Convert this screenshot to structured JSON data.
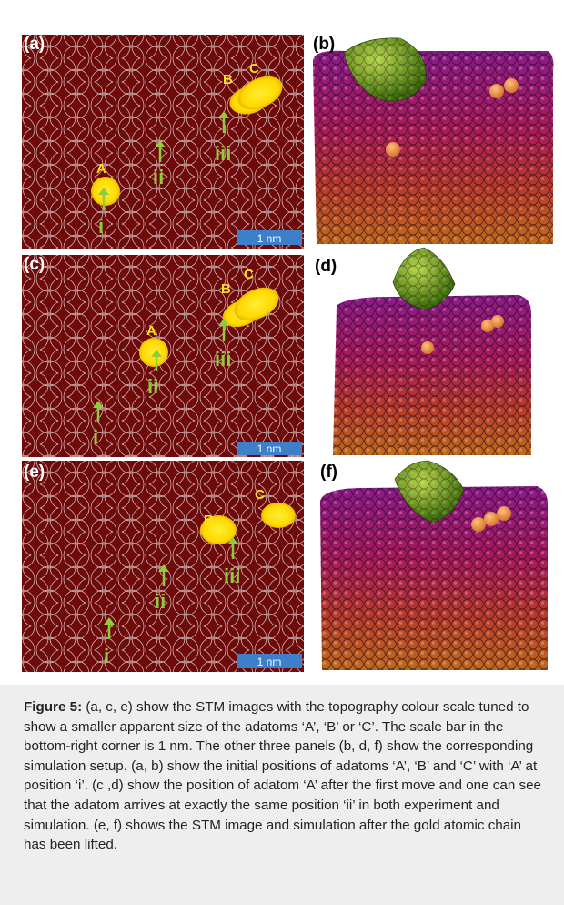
{
  "panels": {
    "a": {
      "label": "(a)",
      "adatoms": [
        "A",
        "B",
        "C"
      ],
      "positions": [
        "i",
        "ii",
        "iii"
      ],
      "scalebar": "1 nm"
    },
    "b": {
      "label": "(b)"
    },
    "c": {
      "label": "(c)",
      "adatoms": [
        "A",
        "B",
        "C"
      ],
      "positions": [
        "i",
        "ii",
        "iii"
      ],
      "scalebar": "1 nm"
    },
    "d": {
      "label": "(d)"
    },
    "e": {
      "label": "(e)",
      "adatoms": [
        "B",
        "C"
      ],
      "positions": [
        "i",
        "ii",
        "iii"
      ],
      "scalebar": "1 nm"
    },
    "f": {
      "label": "(f)"
    }
  },
  "caption": {
    "title": "Figure 5:",
    "text": " (a, c, e) show the STM images with the topography colour scale tuned to show a smaller apparent size of the adatoms ‘A’, ‘B’ or ‘C’. The scale bar in the bottom-right corner is 1 nm. The other three panels (b, d, f) show the corresponding simulation setup. (a, b) show the initial positions of adatoms ‘A’, ‘B’ and ‘C’ with ‘A’ at position ‘i’. (c ,d) show the position of adatom ‘A’ after the first move and one can see that the adatom arrives at exactly the same position ‘ii’ in both experiment and simulation. (e, f) shows the STM image and simulation after the gold atomic chain has been lifted."
  },
  "colors": {
    "stm_bg": "#6e0a0a",
    "adatom": "#ffe020",
    "arrow": "#8fcb3a",
    "scalebar": "#3d7fc9"
  }
}
